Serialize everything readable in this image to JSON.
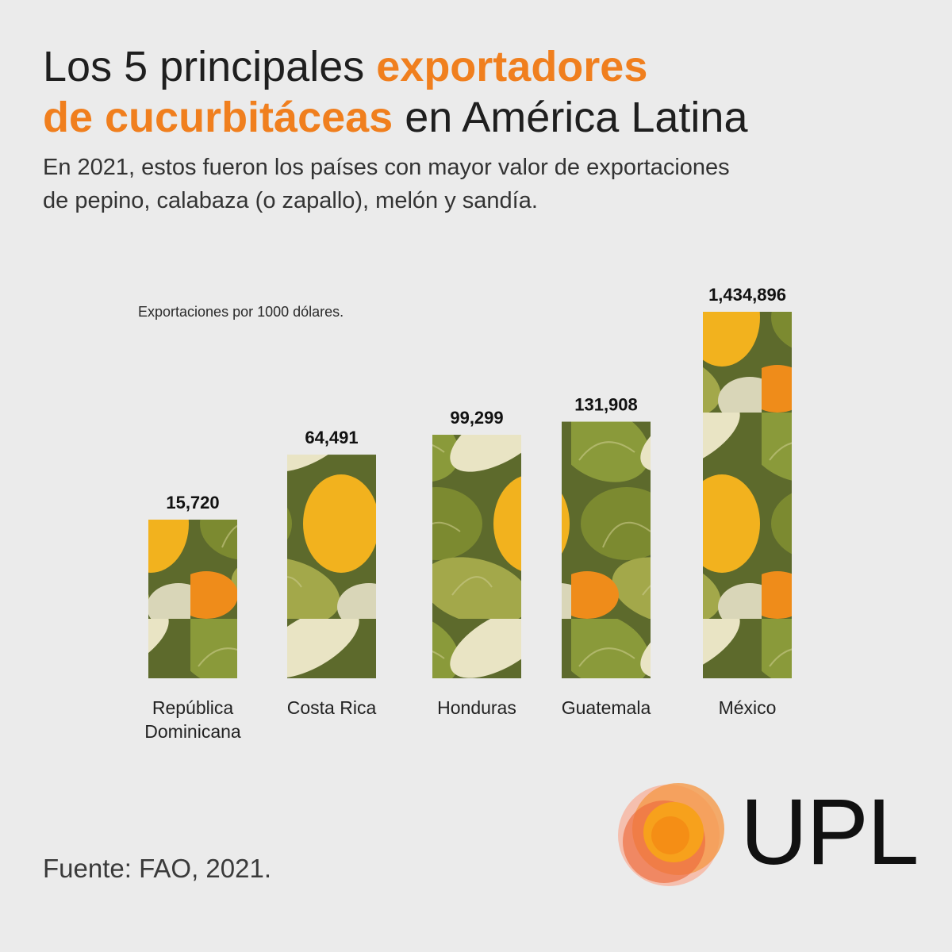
{
  "title": {
    "part1": "Los 5 principales ",
    "highlight1": "exportadores",
    "highlight2": "de cucurbitáceas",
    "part2": " en América Latina"
  },
  "subtitle": {
    "line1": "En 2021, estos fueron los países con mayor valor de exportaciones",
    "line2": "de pepino, calabaza (o zapallo), melón y sandía."
  },
  "units_note": "Exportaciones por 1000 dólares.",
  "source": "Fuente: FAO, 2021.",
  "logo_text": "UPL",
  "colors": {
    "accent": "#f07f1e",
    "background": "#ebebeb",
    "text": "#222222"
  },
  "chart_data": {
    "type": "bar",
    "categories": [
      [
        "República",
        "Dominicana"
      ],
      [
        "Costa Rica"
      ],
      [
        "Honduras"
      ],
      [
        "Guatemala"
      ],
      [
        "México"
      ]
    ],
    "values": [
      15720,
      64491,
      99299,
      131908,
      1434896
    ],
    "value_labels": [
      "15,720",
      "64,491",
      "99,299",
      "131,908",
      "1,434,896"
    ],
    "bar_fill": "photo of melons, pumpkins and cucumbers",
    "scale": "non-linear (pictorial)",
    "title": "",
    "xlabel": "",
    "ylabel": ""
  }
}
